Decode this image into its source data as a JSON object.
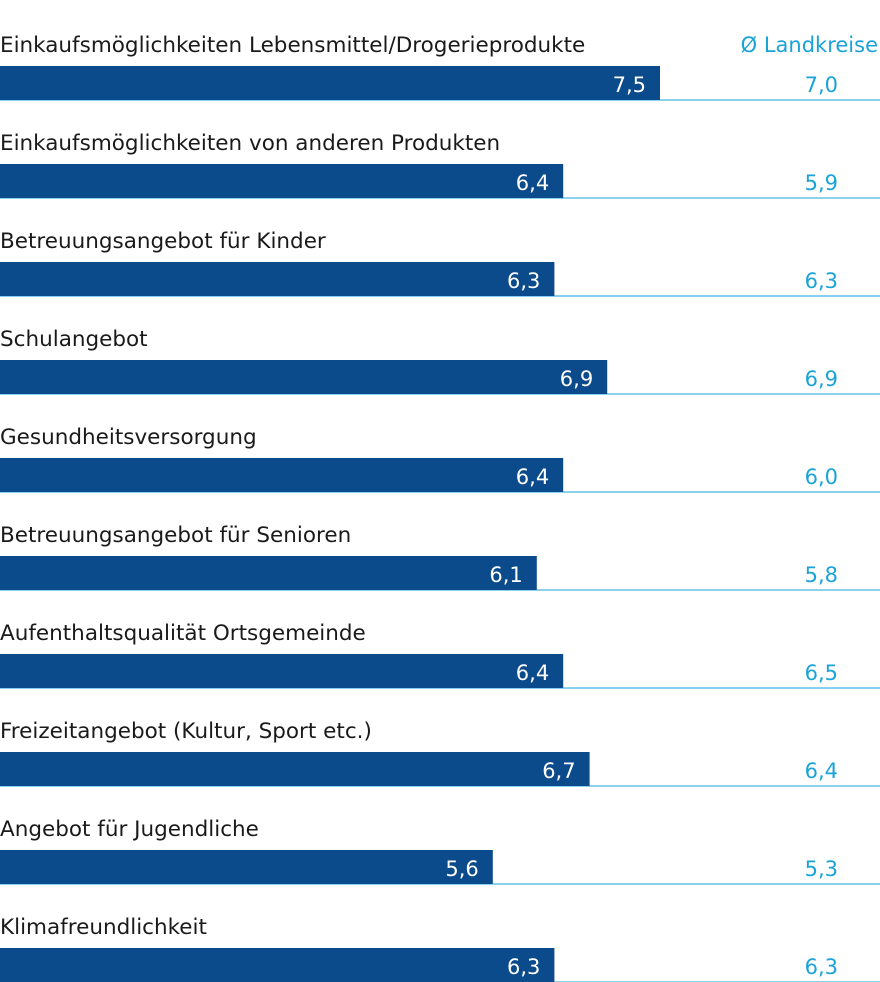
{
  "chart_data": {
    "type": "bar",
    "orientation": "horizontal",
    "categories": [
      "Einkaufsmöglichkeiten Lebensmittel/Drogerieprodukte",
      "Einkaufsmöglichkeiten von anderen Produkten",
      "Betreuungsangebot für Kinder",
      "Schulangebot",
      "Gesundheitsversorgung",
      "Betreuungsangebot für Senioren",
      "Aufenthaltsqualität Ortsgemeinde",
      "Freizeitangebot (Kultur, Sport etc.)",
      "Angebot für Jugendliche",
      "Klimafreundlichkeit"
    ],
    "series": [
      {
        "values": [
          7.5,
          6.4,
          6.3,
          6.9,
          6.4,
          6.1,
          6.4,
          6.7,
          5.6,
          6.3
        ]
      },
      {
        "name": "Ø Landkreise",
        "values": [
          7.0,
          5.9,
          6.3,
          6.9,
          6.0,
          5.8,
          6.5,
          6.4,
          5.3,
          6.3
        ]
      }
    ],
    "xlim": [
      0,
      10
    ],
    "decimal_separator": ",",
    "grid": false,
    "legend": "top-right",
    "colors": {
      "bar": "#0b4a8b",
      "comparison": "#1aa3d9",
      "rule": "#1aa3d9",
      "label": "#1a1a1a"
    }
  }
}
